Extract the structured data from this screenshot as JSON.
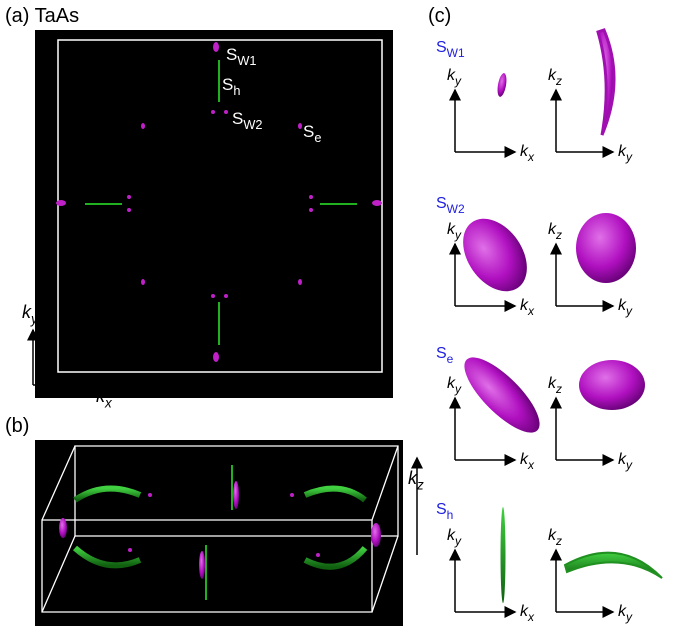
{
  "panel_a": {
    "label": "(a) TaAs",
    "pockets": [
      {
        "symbol": "S",
        "subscript": "W1"
      },
      {
        "symbol": "S",
        "subscript": "h"
      },
      {
        "symbol": "S",
        "subscript": "W2"
      },
      {
        "symbol": "S",
        "subscript": "e"
      }
    ],
    "axes": {
      "vertical": {
        "symbol": "k",
        "subscript": "y"
      },
      "horizontal": {
        "symbol": "k",
        "subscript": "x"
      }
    }
  },
  "panel_b": {
    "label": "(b)",
    "axis": {
      "symbol": "k",
      "subscript": "z"
    }
  },
  "panel_c": {
    "label": "(c)",
    "rows": [
      {
        "title": {
          "symbol": "S",
          "subscript": "W1"
        },
        "views": [
          {
            "vertical": {
              "symbol": "k",
              "subscript": "y"
            },
            "horizontal": {
              "symbol": "k",
              "subscript": "x"
            }
          },
          {
            "vertical": {
              "symbol": "k",
              "subscript": "z"
            },
            "horizontal": {
              "symbol": "k",
              "subscript": "y"
            }
          }
        ]
      },
      {
        "title": {
          "symbol": "S",
          "subscript": "W2"
        },
        "views": [
          {
            "vertical": {
              "symbol": "k",
              "subscript": "y"
            },
            "horizontal": {
              "symbol": "k",
              "subscript": "x"
            }
          },
          {
            "vertical": {
              "symbol": "k",
              "subscript": "z"
            },
            "horizontal": {
              "symbol": "k",
              "subscript": "y"
            }
          }
        ]
      },
      {
        "title": {
          "symbol": "S",
          "subscript": "e"
        },
        "views": [
          {
            "vertical": {
              "symbol": "k",
              "subscript": "y"
            },
            "horizontal": {
              "symbol": "k",
              "subscript": "x"
            }
          },
          {
            "vertical": {
              "symbol": "k",
              "subscript": "z"
            },
            "horizontal": {
              "symbol": "k",
              "subscript": "y"
            }
          }
        ]
      },
      {
        "title": {
          "symbol": "S",
          "subscript": "h"
        },
        "views": [
          {
            "vertical": {
              "symbol": "k",
              "subscript": "y"
            },
            "horizontal": {
              "symbol": "k",
              "subscript": "x"
            }
          },
          {
            "vertical": {
              "symbol": "k",
              "subscript": "z"
            },
            "horizontal": {
              "symbol": "k",
              "subscript": "y"
            }
          }
        ]
      }
    ]
  }
}
